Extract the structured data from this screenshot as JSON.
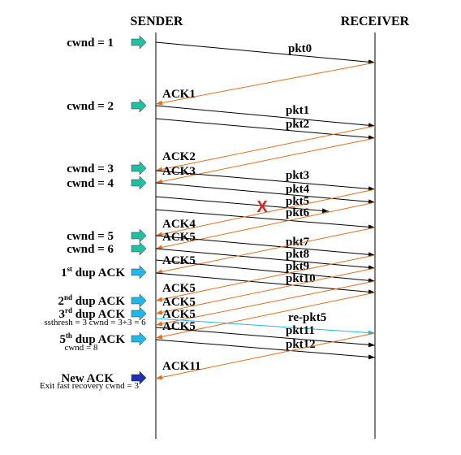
{
  "header": {
    "sender": "SENDER",
    "receiver": "RECEIVER"
  },
  "sender_events": [
    {
      "label": "cwnd = 1"
    },
    {
      "label": "cwnd = 2"
    },
    {
      "label": "cwnd = 3"
    },
    {
      "label": "cwnd = 4"
    },
    {
      "label": "cwnd = 5"
    },
    {
      "label": "cwnd = 6"
    },
    {
      "ordinal": "1",
      "suffix": "st",
      "text": " dup ACK"
    },
    {
      "ordinal": "2",
      "suffix": "nd",
      "text": " dup ACK"
    },
    {
      "ordinal": "3",
      "suffix": "rd",
      "text": " dup ACK"
    },
    {
      "ordinal": "5",
      "suffix": "th",
      "text": " dup ACK"
    },
    {
      "label": "New ACK"
    }
  ],
  "notes": [
    "ssthresh = 3 cwnd = 3+3 = 6",
    "cwnd = 8",
    "Exit fast recovery cwnd = 3"
  ],
  "messages": [
    {
      "label": "pkt0"
    },
    {
      "label": "ACK1"
    },
    {
      "label": "pkt1"
    },
    {
      "label": "pkt2"
    },
    {
      "label": "ACK2"
    },
    {
      "label": "ACK3"
    },
    {
      "label": "pkt3"
    },
    {
      "label": "pkt4"
    },
    {
      "label": "pkt5"
    },
    {
      "label": "pkt6"
    },
    {
      "label": "ACK4"
    },
    {
      "label": "ACK5"
    },
    {
      "label": "pkt7"
    },
    {
      "label": "pkt8"
    },
    {
      "label": "ACK5"
    },
    {
      "label": "pkt9"
    },
    {
      "label": "pkt10"
    },
    {
      "label": "ACK5"
    },
    {
      "label": "ACK5"
    },
    {
      "label": "ACK5"
    },
    {
      "label": "ACK5"
    },
    {
      "label": "re-pkt5"
    },
    {
      "label": "pkt11"
    },
    {
      "label": "pkt12"
    },
    {
      "label": "ACK11"
    }
  ],
  "lost_marker": "X"
}
